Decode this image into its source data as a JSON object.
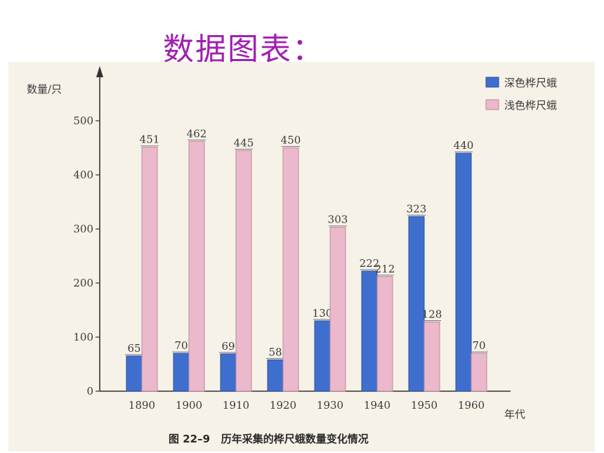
{
  "slide_title": "数据图表：",
  "caption": "图 22–9   历年采集的桦尺蛾数量变化情况",
  "colors": {
    "title": "#a020b0",
    "dark_series": "#3f6fce",
    "light_series": "#ecb8cc",
    "axis": "#333333"
  },
  "chart_data": {
    "type": "bar",
    "categories": [
      "1890",
      "1900",
      "1910",
      "1920",
      "1930",
      "1940",
      "1950",
      "1960"
    ],
    "series": [
      {
        "name": "深色桦尺蛾",
        "values": [
          65,
          70,
          69,
          58,
          130,
          222,
          323,
          440
        ]
      },
      {
        "name": "浅色桦尺蛾",
        "values": [
          451,
          462,
          445,
          450,
          303,
          212,
          128,
          70
        ]
      }
    ],
    "ylabel": "数量/只",
    "xlabel": "年代",
    "ylim": [
      0,
      500
    ],
    "yticks": [
      0,
      100,
      200,
      300,
      400,
      500
    ],
    "legend_position": "top-right",
    "grid": false
  }
}
